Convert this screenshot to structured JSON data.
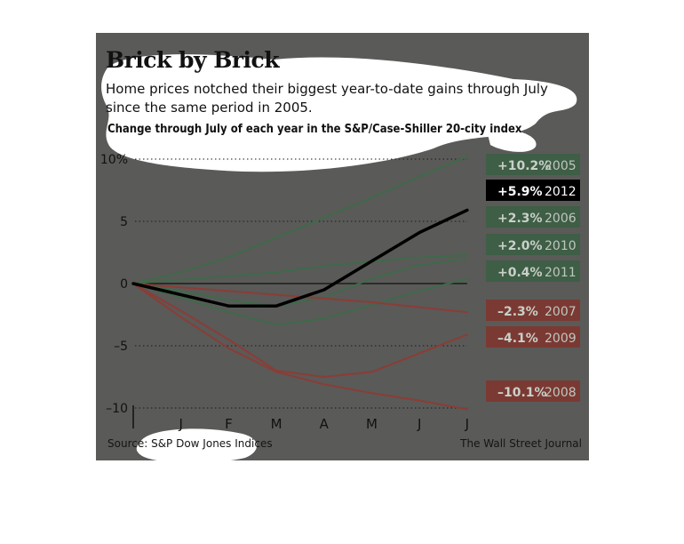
{
  "header": {
    "title": "Brick by Brick",
    "subtitle": "Home prices notched their biggest year-to-date gains through July since the same period in 2005.",
    "chart_label": "Change through July of each year in the S&P/Case-Shiller 20-city index"
  },
  "footer": {
    "source": "Source: S&P Dow Jones Indices",
    "credit": "The Wall Street Journal"
  },
  "colors": {
    "background": "#5a5a58",
    "gain": "#3f6a4a",
    "loss": "#8a3d36",
    "highlight": "#000000"
  },
  "chart_data": {
    "type": "line",
    "title": "Brick by Brick",
    "subtitle": "Change through July of each year in the S&P/Case-Shiller 20-city index",
    "xlabel": "",
    "ylabel": "",
    "categories": [
      "",
      "J",
      "F",
      "M",
      "A",
      "M",
      "J",
      "J"
    ],
    "y_ticks": [
      {
        "value": 10,
        "label": "10%"
      },
      {
        "value": 5,
        "label": "5"
      },
      {
        "value": 0,
        "label": "0"
      },
      {
        "value": -5,
        "label": "–5"
      },
      {
        "value": -10,
        "label": "–10"
      }
    ],
    "ylim": [
      -10,
      10
    ],
    "grid": "dotted horizontal",
    "legend": "labels at right",
    "series": [
      {
        "name": "2005",
        "label": "+10.2%",
        "group": "gain",
        "values": [
          0,
          0.9,
          2.1,
          3.7,
          5.3,
          6.9,
          8.6,
          10.2
        ]
      },
      {
        "name": "2012",
        "label": "+5.9%",
        "group": "highlight",
        "values": [
          0,
          -0.9,
          -1.8,
          -1.8,
          -0.5,
          1.8,
          4.1,
          5.9
        ]
      },
      {
        "name": "2006",
        "label": "+2.3%",
        "group": "gain",
        "values": [
          0,
          0.3,
          0.6,
          0.9,
          1.4,
          1.8,
          2.1,
          2.3
        ]
      },
      {
        "name": "2010",
        "label": "+2.0%",
        "group": "gain",
        "values": [
          0,
          -0.6,
          -1.3,
          -1.8,
          -1.1,
          0.4,
          1.5,
          2.0
        ]
      },
      {
        "name": "2011",
        "label": "+0.4%",
        "group": "gain",
        "values": [
          0,
          -1.1,
          -2.3,
          -3.3,
          -2.8,
          -1.7,
          -0.6,
          0.4
        ]
      },
      {
        "name": "2007",
        "label": "–2.3%",
        "group": "loss",
        "values": [
          0,
          -0.3,
          -0.6,
          -0.9,
          -1.2,
          -1.5,
          -1.9,
          -2.3
        ]
      },
      {
        "name": "2009",
        "label": "–4.1%",
        "group": "loss",
        "values": [
          0,
          -2.2,
          -4.5,
          -7.0,
          -7.5,
          -7.1,
          -5.6,
          -4.1
        ]
      },
      {
        "name": "2008",
        "label": "–10.1%",
        "group": "loss",
        "values": [
          0,
          -2.7,
          -5.2,
          -7.1,
          -8.1,
          -8.8,
          -9.4,
          -10.1
        ]
      }
    ]
  }
}
